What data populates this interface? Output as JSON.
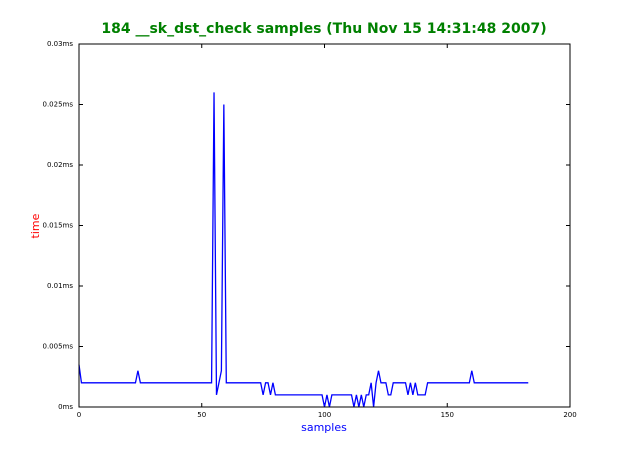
{
  "chart_data": {
    "type": "line",
    "title": "184 __sk_dst_check samples (Thu Nov 15 14:31:48 2007)",
    "xlabel": "samples",
    "ylabel": "time",
    "x": [
      0,
      1,
      23,
      24,
      25,
      54,
      55,
      56,
      58,
      59,
      60,
      74,
      75,
      76,
      77,
      78,
      79,
      80,
      99,
      100,
      101,
      102,
      103,
      111,
      112,
      113,
      114,
      115,
      116,
      117,
      118,
      119,
      120,
      121,
      122,
      123,
      125,
      126,
      127,
      128,
      133,
      134,
      135,
      136,
      137,
      138,
      141,
      142,
      159,
      160,
      161,
      183
    ],
    "series": [
      {
        "color": "#0000ff",
        "values": [
          0.0035,
          0.002,
          0.002,
          0.003,
          0.002,
          0.002,
          0.026,
          0.001,
          0.003,
          0.025,
          0.002,
          0.002,
          0.001,
          0.002,
          0.002,
          0.001,
          0.002,
          0.001,
          0.001,
          0,
          0.001,
          0,
          0.001,
          0.001,
          0,
          0.001,
          0,
          0.001,
          0,
          0.001,
          0.001,
          0.002,
          0,
          0.002,
          0.003,
          0.002,
          0.002,
          0.001,
          0.001,
          0.002,
          0.002,
          0.001,
          0.002,
          0.001,
          0.002,
          0.001,
          0.001,
          0.002,
          0.002,
          0.003,
          0.002,
          0.002
        ]
      }
    ],
    "xlim": [
      0,
      200
    ],
    "xticks": [
      0,
      50,
      100,
      150,
      200
    ],
    "ylim": [
      0,
      0.03
    ],
    "yticks": [
      {
        "value": 0,
        "label": "0ms"
      },
      {
        "value": 0.005,
        "label": "0.005ms"
      },
      {
        "value": 0.01,
        "label": "0.01ms"
      },
      {
        "value": 0.015,
        "label": "0.015ms"
      },
      {
        "value": 0.02,
        "label": "0.02ms"
      },
      {
        "value": 0.025,
        "label": "0.025ms"
      },
      {
        "value": 0.03,
        "label": "0.03ms"
      }
    ],
    "title_color": "#008000",
    "xlabel_color": "#0000ff",
    "ylabel_color": "#ff0000"
  }
}
